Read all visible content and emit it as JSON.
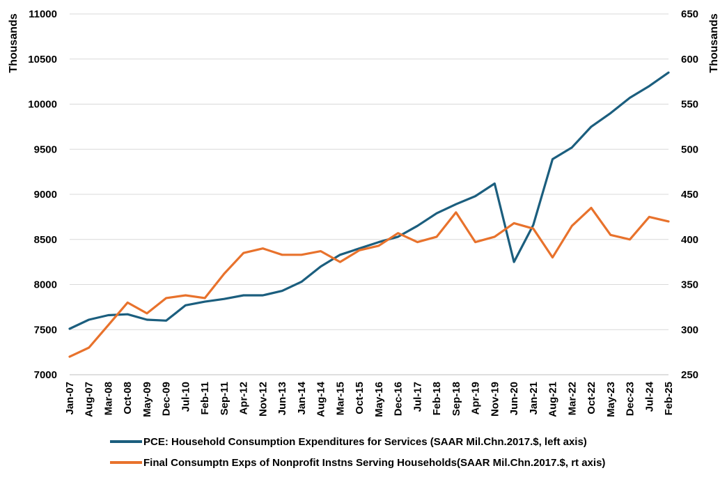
{
  "chart_data": {
    "type": "line",
    "x_categories": [
      "Jan-07",
      "Aug-07",
      "Mar-08",
      "Oct-08",
      "May-09",
      "Dec-09",
      "Jul-10",
      "Feb-11",
      "Sep-11",
      "Apr-12",
      "Nov-12",
      "Jun-13",
      "Jan-14",
      "Aug-14",
      "Mar-15",
      "Oct-15",
      "May-16",
      "Dec-16",
      "Jul-17",
      "Feb-18",
      "Sep-18",
      "Apr-19",
      "Nov-19",
      "Jun-20",
      "Jan-21",
      "Aug-21",
      "Mar-22",
      "Oct-22",
      "May-23",
      "Dec-23",
      "Jul-24",
      "Feb-25"
    ],
    "y_left": {
      "label": "Thousands",
      "ticks": [
        "7000",
        "7500",
        "8000",
        "8500",
        "9000",
        "9500",
        "10000",
        "10500",
        "11000"
      ],
      "ylim": [
        7000,
        11000
      ]
    },
    "y_right": {
      "label": "Thousands",
      "ticks": [
        "250",
        "300",
        "350",
        "400",
        "450",
        "500",
        "550",
        "600",
        "650"
      ],
      "ylim": [
        250,
        650
      ]
    },
    "grid": "horizontal",
    "legend_position": "bottom",
    "series": [
      {
        "name": "PCE: Household Consumption Expenditures for Services (SAAR Mil.Chn.2017.$, left axis)",
        "axis": "left",
        "color": "#1b5e7e",
        "values": [
          7510,
          7610,
          7660,
          7670,
          7610,
          7600,
          7770,
          7810,
          7840,
          7880,
          7880,
          7930,
          8030,
          8200,
          8330,
          8400,
          8470,
          8530,
          8650,
          8790,
          8890,
          8980,
          9120,
          8250,
          8660,
          9390,
          9520,
          9750,
          9900,
          10070,
          10200,
          10350
        ]
      },
      {
        "name": "Final Consumptn Exps of Nonprofit Instns Serving Households(SAAR Mil.Chn.2017.$, rt axis)",
        "axis": "right",
        "color": "#e8722c",
        "values": [
          270,
          280,
          305,
          330,
          318,
          335,
          338,
          335,
          362,
          385,
          390,
          383,
          383,
          387,
          375,
          388,
          393,
          407,
          397,
          403,
          430,
          397,
          403,
          418,
          412,
          380,
          415,
          435,
          405,
          400,
          425,
          420
        ]
      }
    ]
  }
}
